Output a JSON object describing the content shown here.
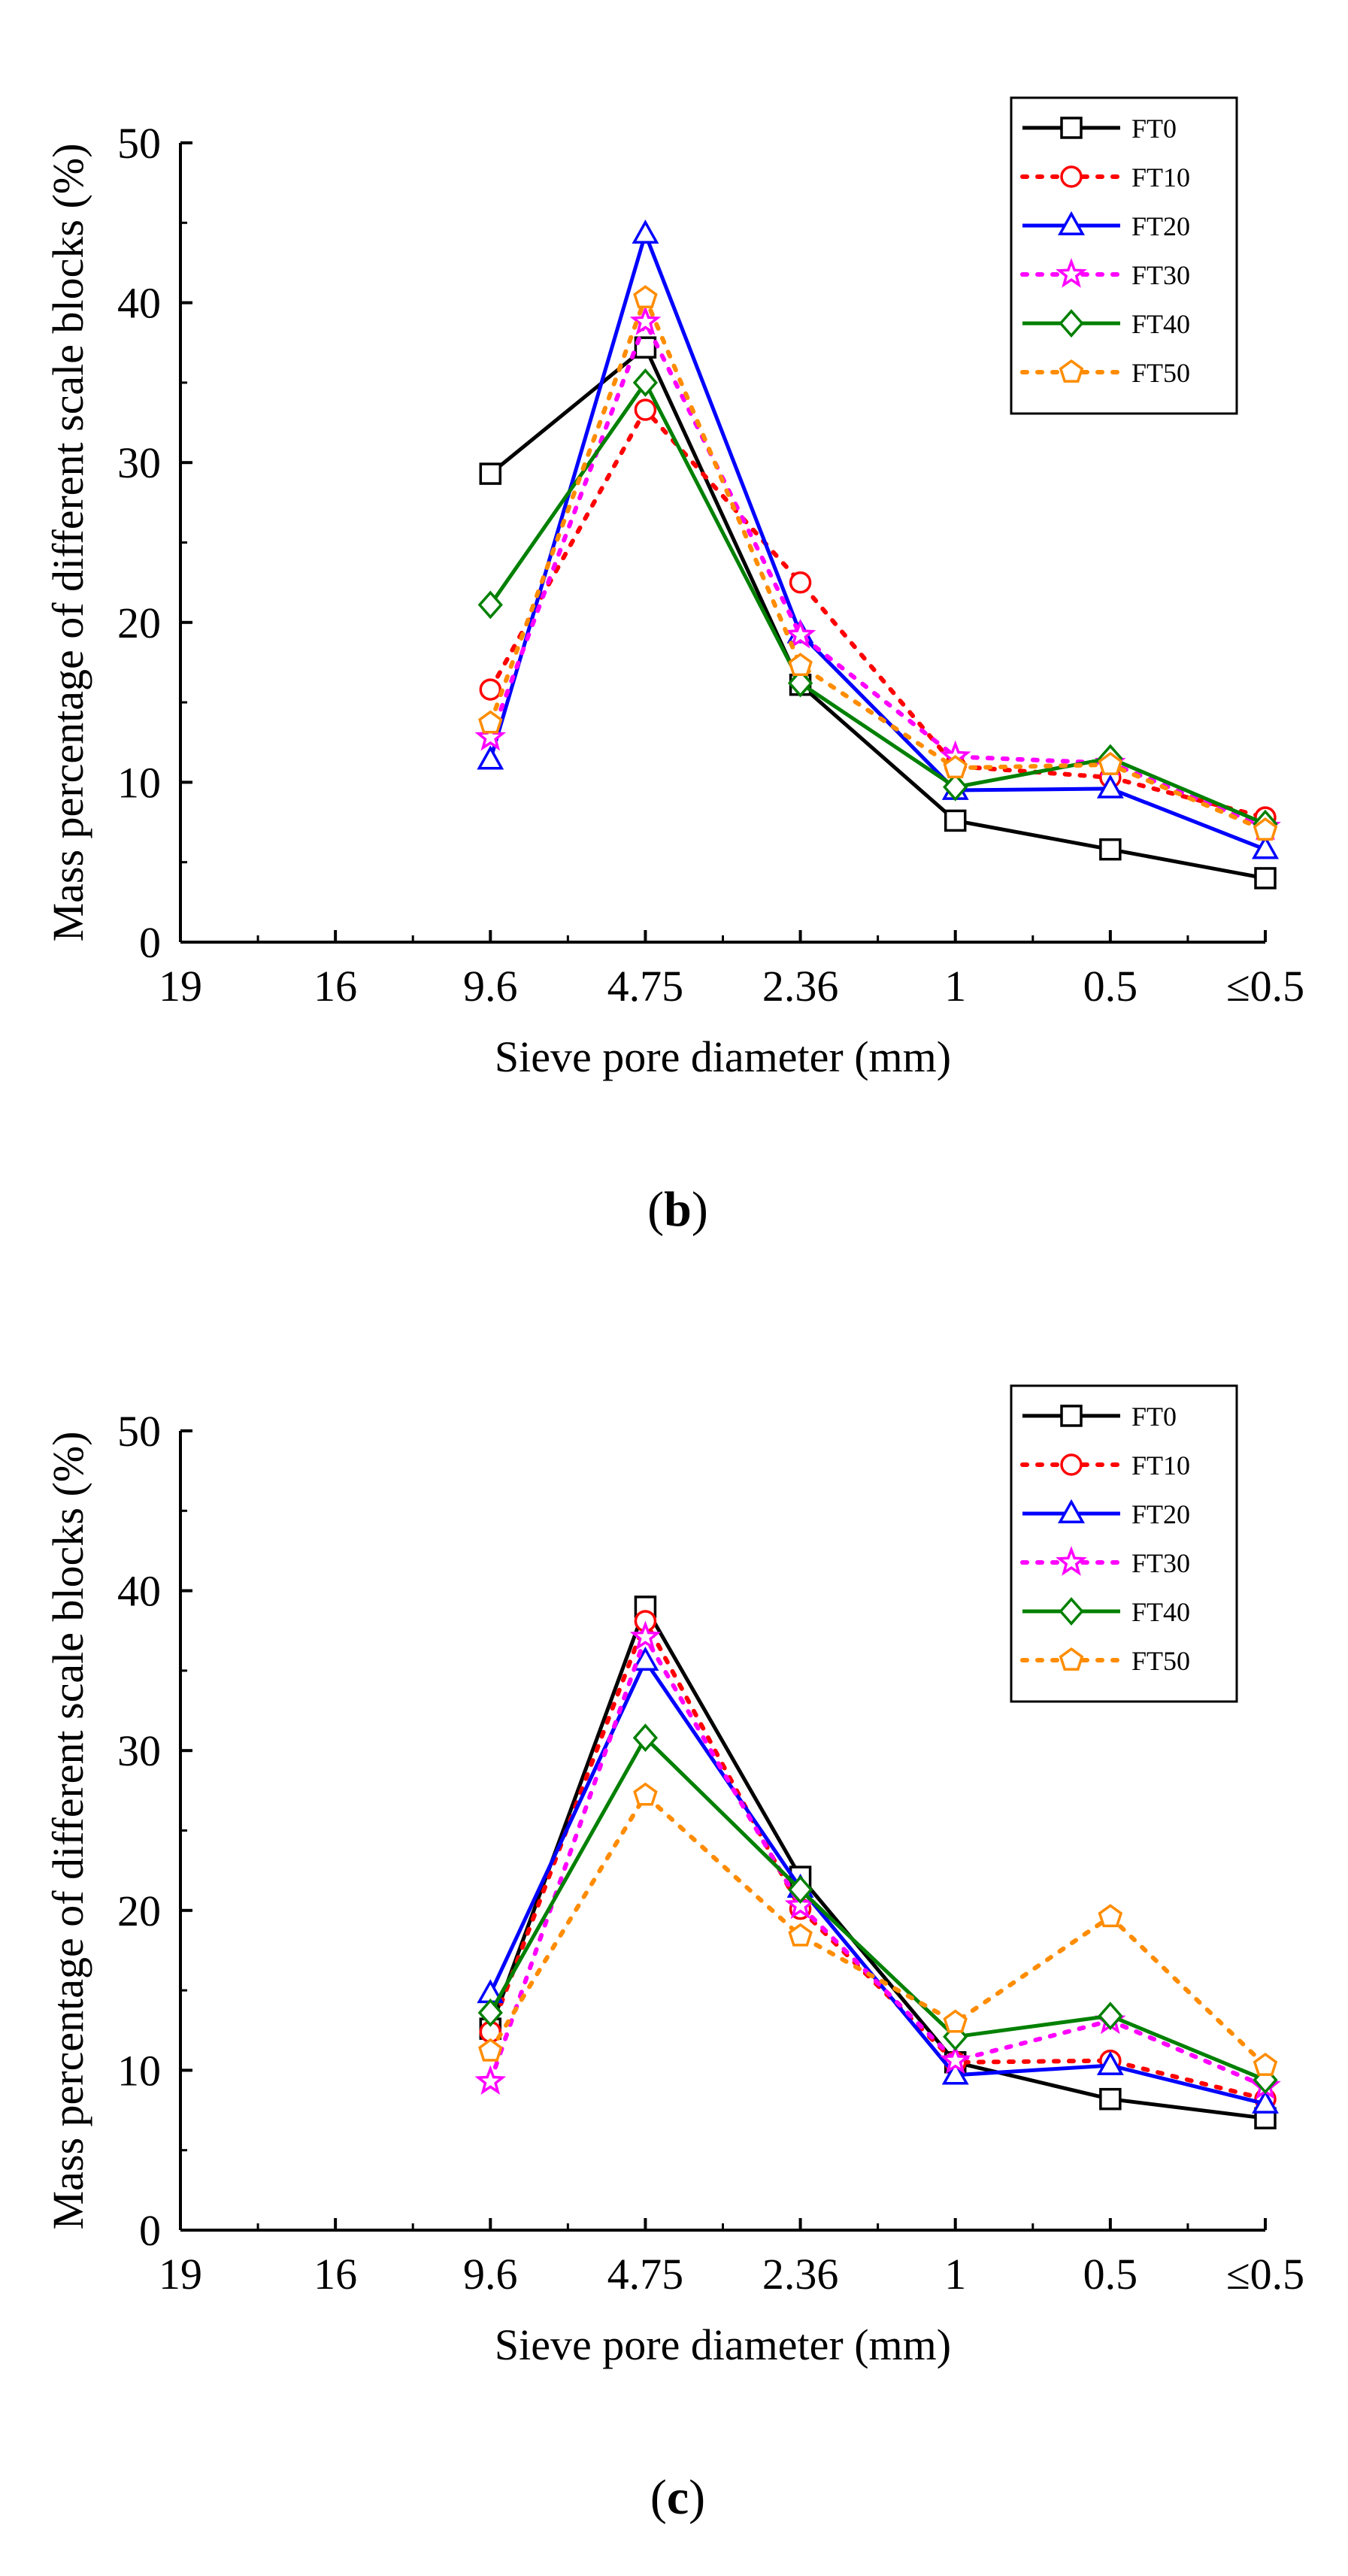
{
  "figure": {
    "panels": [
      "(b)",
      "(c)"
    ]
  },
  "colors": {
    "FT0": "#000000",
    "FT10": "#ff0000",
    "FT20": "#0000ff",
    "FT30": "#ff00ff",
    "FT40": "#008000",
    "FT50": "#ff8c00"
  },
  "chart_data": [
    {
      "type": "line",
      "panel_label": "b",
      "ylabel": "Mass percentage of different scale blocks (%)",
      "xlabel": "Sieve pore diameter (mm)",
      "categories": [
        "19",
        "16",
        "9.6",
        "4.75",
        "2.36",
        "1",
        "0.5",
        "≤0.5"
      ],
      "ylim": [
        0,
        50
      ],
      "yticks": [
        0,
        10,
        20,
        30,
        40,
        50
      ],
      "grid": false,
      "legend_position": "top-right",
      "series": [
        {
          "name": "FT0",
          "marker": "square",
          "dash": false,
          "values": [
            null,
            null,
            29.3,
            37.2,
            16.1,
            7.6,
            5.8,
            4.0
          ]
        },
        {
          "name": "FT10",
          "marker": "circle",
          "dash": true,
          "values": [
            null,
            null,
            15.8,
            33.3,
            22.5,
            11.0,
            10.3,
            7.8
          ]
        },
        {
          "name": "FT20",
          "marker": "triangle",
          "dash": false,
          "values": [
            null,
            null,
            11.4,
            44.3,
            19.3,
            9.5,
            9.6,
            5.8
          ]
        },
        {
          "name": "FT30",
          "marker": "star",
          "dash": true,
          "values": [
            null,
            null,
            12.8,
            38.8,
            19.2,
            11.6,
            11.2,
            7.2
          ]
        },
        {
          "name": "FT40",
          "marker": "diamond",
          "dash": false,
          "values": [
            null,
            null,
            21.1,
            35.0,
            16.2,
            9.7,
            11.5,
            7.4
          ]
        },
        {
          "name": "FT50",
          "marker": "pentagon",
          "dash": true,
          "values": [
            null,
            null,
            13.7,
            40.3,
            17.3,
            10.9,
            11.1,
            7.0
          ]
        }
      ]
    },
    {
      "type": "line",
      "panel_label": "c",
      "ylabel": "Mass percentage of different scale blocks (%)",
      "xlabel": "Sieve pore diameter (mm)",
      "categories": [
        "19",
        "16",
        "9.6",
        "4.75",
        "2.36",
        "1",
        "0.5",
        "≤0.5"
      ],
      "ylim": [
        0,
        50
      ],
      "yticks": [
        0,
        10,
        20,
        30,
        40,
        50
      ],
      "grid": false,
      "legend_position": "top-right",
      "series": [
        {
          "name": "FT0",
          "marker": "square",
          "dash": false,
          "values": [
            null,
            null,
            12.6,
            39.0,
            22.1,
            10.5,
            8.2,
            7.0
          ]
        },
        {
          "name": "FT10",
          "marker": "circle",
          "dash": true,
          "values": [
            null,
            null,
            12.4,
            38.1,
            20.1,
            10.5,
            10.6,
            8.2
          ]
        },
        {
          "name": "FT20",
          "marker": "triangle",
          "dash": false,
          "values": [
            null,
            null,
            14.8,
            35.6,
            21.4,
            9.7,
            10.3,
            7.9
          ]
        },
        {
          "name": "FT30",
          "marker": "star",
          "dash": true,
          "values": [
            null,
            null,
            9.3,
            37.1,
            20.3,
            10.6,
            13.1,
            9.0
          ]
        },
        {
          "name": "FT40",
          "marker": "diamond",
          "dash": false,
          "values": [
            null,
            null,
            13.6,
            30.8,
            21.3,
            12.1,
            13.4,
            9.4
          ]
        },
        {
          "name": "FT50",
          "marker": "pentagon",
          "dash": true,
          "values": [
            null,
            null,
            11.2,
            27.2,
            18.4,
            13.0,
            19.6,
            10.3
          ]
        }
      ]
    }
  ]
}
